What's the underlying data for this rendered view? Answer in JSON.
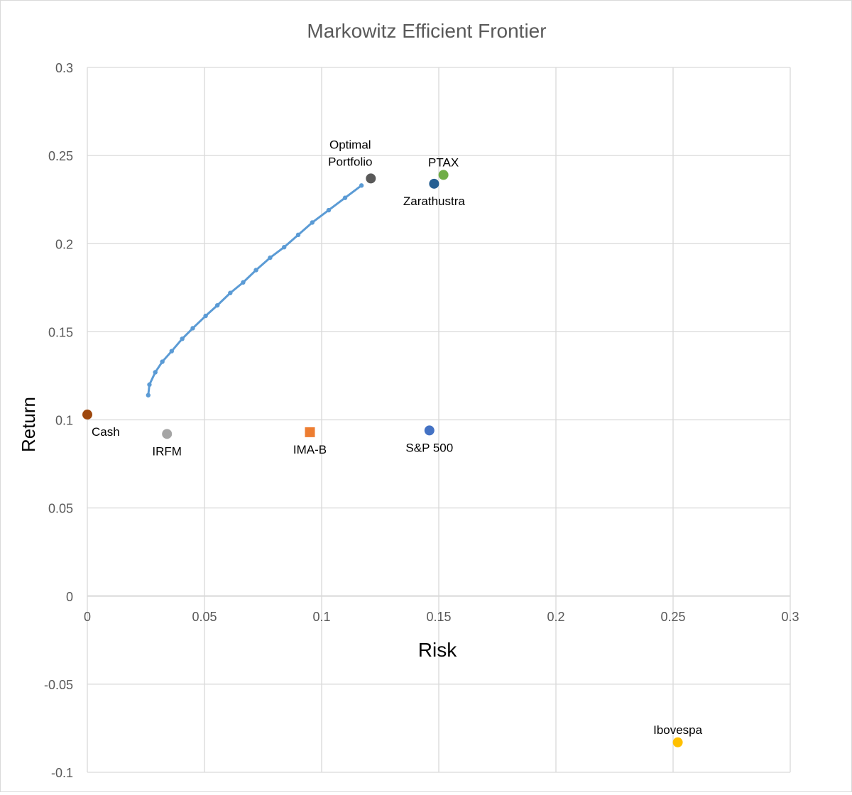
{
  "chart_data": {
    "type": "scatter",
    "title": "Markowitz Efficient Frontier",
    "xlabel": "Risk",
    "ylabel": "Return",
    "xlim": [
      0,
      0.3
    ],
    "ylim": [
      -0.1,
      0.3
    ],
    "xticks": [
      0,
      0.05,
      0.1,
      0.15,
      0.2,
      0.25,
      0.3
    ],
    "xtick_labels": [
      "0",
      "0.05",
      "0.1",
      "0.15",
      "0.2",
      "0.25",
      "0.3"
    ],
    "yticks": [
      -0.1,
      -0.05,
      0,
      0.05,
      0.1,
      0.15,
      0.2,
      0.25,
      0.3
    ],
    "ytick_labels": [
      "-0.1",
      "-0.05",
      "0",
      "0.05",
      "0.1",
      "0.15",
      "0.2",
      "0.25",
      "0.3"
    ],
    "grid": true,
    "legend": "none",
    "frontier": {
      "color": "#5B9BD5",
      "points": [
        [
          0.026,
          0.114
        ],
        [
          0.0265,
          0.12
        ],
        [
          0.029,
          0.127
        ],
        [
          0.032,
          0.133
        ],
        [
          0.036,
          0.139
        ],
        [
          0.0405,
          0.146
        ],
        [
          0.045,
          0.152
        ],
        [
          0.0505,
          0.159
        ],
        [
          0.0555,
          0.165
        ],
        [
          0.061,
          0.172
        ],
        [
          0.0665,
          0.178
        ],
        [
          0.072,
          0.185
        ],
        [
          0.078,
          0.192
        ],
        [
          0.084,
          0.198
        ],
        [
          0.09,
          0.205
        ],
        [
          0.096,
          0.212
        ],
        [
          0.103,
          0.219
        ],
        [
          0.11,
          0.226
        ],
        [
          0.117,
          0.233
        ]
      ]
    },
    "assets": [
      {
        "name": "Optimal\nPortfolio",
        "x": 0.121,
        "y": 0.237,
        "color": "#595959",
        "marker": "circle",
        "label_pos": "top-left"
      },
      {
        "name": "PTAX",
        "x": 0.152,
        "y": 0.239,
        "color": "#70AD47",
        "marker": "circle",
        "label_pos": "top"
      },
      {
        "name": "Zarathustra",
        "x": 0.148,
        "y": 0.234,
        "color": "#255E91",
        "marker": "circle",
        "label_pos": "bottom"
      },
      {
        "name": "Cash",
        "x": 0.0,
        "y": 0.103,
        "color": "#9E480E",
        "marker": "circle",
        "label_pos": "bottom-right"
      },
      {
        "name": "IRFM",
        "x": 0.034,
        "y": 0.092,
        "color": "#A5A5A5",
        "marker": "circle",
        "label_pos": "bottom"
      },
      {
        "name": "IMA-B",
        "x": 0.095,
        "y": 0.093,
        "color": "#ED7D31",
        "marker": "square",
        "label_pos": "bottom"
      },
      {
        "name": "S&P 500",
        "x": 0.146,
        "y": 0.094,
        "color": "#4472C4",
        "marker": "circle",
        "label_pos": "bottom"
      },
      {
        "name": "Ibovespa",
        "x": 0.252,
        "y": -0.083,
        "color": "#FFC000",
        "marker": "circle",
        "label_pos": "top"
      }
    ]
  }
}
